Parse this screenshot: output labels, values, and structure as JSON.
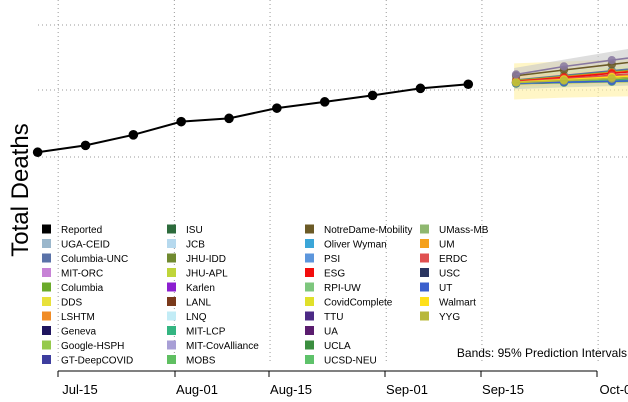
{
  "chart_data": {
    "type": "line",
    "ylabel": "Total Deaths",
    "x_ticks": [
      "Jul-15",
      "Aug-01",
      "Aug-15",
      "Sep-01",
      "Sep-15",
      "Oct-01"
    ],
    "bands_note": "Bands: 95% Prediction Intervals",
    "grid": true,
    "reported": {
      "name": "Reported",
      "color": "#000000",
      "points": [
        [
          "2020-07-11",
          134500
        ],
        [
          "2020-07-18",
          138200
        ],
        [
          "2020-07-25",
          143900
        ],
        [
          "2020-08-01",
          151000
        ],
        [
          "2020-08-08",
          152800
        ],
        [
          "2020-08-15",
          158300
        ],
        [
          "2020-08-22",
          161700
        ],
        [
          "2020-08-29",
          165200
        ],
        [
          "2020-09-05",
          169000
        ],
        [
          "2020-09-12",
          171200
        ]
      ]
    },
    "forecast_dates": [
      "2020-09-19",
      "2020-09-26",
      "2020-10-03",
      "2020-10-10"
    ],
    "forecasts": [
      {
        "name": "UGA-CEID",
        "color": "#9BB7CC",
        "values": [
          171800,
          172300,
          172800,
          173300
        ]
      },
      {
        "name": "Columbia-UNC",
        "color": "#5A72A8",
        "values": [
          173500,
          176000,
          178500,
          181000
        ]
      },
      {
        "name": "MIT-ORC",
        "color": "#C782D6",
        "values": [
          172400,
          174200,
          176000,
          177800
        ]
      },
      {
        "name": "Columbia",
        "color": "#6AAA2A",
        "values": [
          173300,
          175500,
          177800,
          180200
        ]
      },
      {
        "name": "DDS",
        "color": "#E8E13A",
        "values": [
          172000,
          173500,
          175000,
          176500
        ]
      },
      {
        "name": "LSHTM",
        "color": "#F08C26",
        "values": [
          173000,
          175200,
          177500,
          179800
        ]
      },
      {
        "name": "Geneva",
        "color": "#1E145E",
        "values": [
          172100,
          173400,
          174700,
          176000
        ]
      },
      {
        "name": "Google-HSPH",
        "color": "#95CA4C",
        "values": [
          171500,
          172000,
          172500,
          173000
        ]
      },
      {
        "name": "GT-DeepCOVID",
        "color": "#3D3D9E",
        "values": [
          172500,
          174000,
          175600,
          177200
        ]
      },
      {
        "name": "ISU",
        "color": "#2D6B3C",
        "values": [
          171600,
          172200,
          172900,
          173600
        ]
      },
      {
        "name": "JCB",
        "color": "#B6D9EE",
        "values": [
          172000,
          173200,
          174500,
          175800
        ]
      },
      {
        "name": "JHU-IDD",
        "color": "#708A30",
        "values": [
          172300,
          173700,
          175100,
          176500
        ]
      },
      {
        "name": "JHU-APL",
        "color": "#BFD53A",
        "values": [
          171900,
          172800,
          173700,
          174600
        ]
      },
      {
        "name": "Karlen",
        "color": "#8C1FD0",
        "values": [
          172200,
          173400,
          174600,
          175800
        ]
      },
      {
        "name": "LANL",
        "color": "#7A3A1C",
        "values": [
          172600,
          174300,
          176000,
          177700
        ]
      },
      {
        "name": "LNQ",
        "color": "#C2ECF6",
        "values": [
          171700,
          172300,
          172900,
          173500
        ]
      },
      {
        "name": "MIT-LCP",
        "color": "#34B581",
        "values": [
          171800,
          172300,
          172800,
          173300
        ]
      },
      {
        "name": "MIT-CovAlliance",
        "color": "#A89FD6",
        "values": [
          172500,
          174000,
          175500,
          177000
        ]
      },
      {
        "name": "MOBS",
        "color": "#5FBF61",
        "values": [
          172000,
          173000,
          174000,
          175000
        ]
      },
      {
        "name": "NotreDame-Mobility",
        "color": "#6B5A26",
        "values": [
          175800,
          178900,
          181900,
          185000
        ]
      },
      {
        "name": "Oliver Wyman",
        "color": "#3BA6D8",
        "values": [
          171900,
          172500,
          173100,
          173700
        ]
      },
      {
        "name": "PSI",
        "color": "#5C96DC",
        "values": [
          172000,
          172700,
          173400,
          174100
        ]
      },
      {
        "name": "ESG",
        "color": "#F20D0D",
        "values": [
          172800,
          174900,
          177100,
          179300
        ]
      },
      {
        "name": "RPI-UW",
        "color": "#7DC67D",
        "values": [
          171800,
          172400,
          173000,
          173600
        ]
      },
      {
        "name": "CovidComplete",
        "color": "#E0E02A",
        "values": [
          172400,
          173800,
          175200,
          176600
        ]
      },
      {
        "name": "TTU",
        "color": "#4C2A86",
        "values": [
          171900,
          172600,
          173300,
          174000
        ]
      },
      {
        "name": "UA",
        "color": "#5A1C6E",
        "values": [
          172100,
          173000,
          173900,
          174800
        ]
      },
      {
        "name": "UCLA",
        "color": "#3B8E3F",
        "values": [
          172000,
          173000,
          174000,
          175000
        ]
      },
      {
        "name": "UCSD-NEU",
        "color": "#5EC26A",
        "values": [
          171900,
          172600,
          173300,
          174000
        ]
      },
      {
        "name": "UMass-MB",
        "color": "#8FB870",
        "values": [
          172300,
          173500,
          174800,
          176100
        ]
      },
      {
        "name": "UM",
        "color": "#F5A11C",
        "values": [
          172400,
          173800,
          175300,
          176800
        ]
      },
      {
        "name": "ERDC",
        "color": "#E05050",
        "values": [
          172600,
          174200,
          175900,
          177600
        ]
      },
      {
        "name": "USC",
        "color": "#2A3560",
        "values": [
          172200,
          173300,
          174400,
          175500
        ]
      },
      {
        "name": "UT",
        "color": "#3A5FCD",
        "values": [
          171800,
          172300,
          172800,
          173300
        ]
      },
      {
        "name": "Walmart",
        "color": "#FFE01A",
        "values": [
          172300,
          173700,
          175100,
          176500
        ]
      },
      {
        "name": "YYG",
        "color": "#B8B83A",
        "values": [
          172100,
          173200,
          174300,
          175400
        ]
      }
    ],
    "extra_trajectory": {
      "color": "#8878A0",
      "values": [
        176500,
        180800,
        184200,
        187600
      ]
    },
    "bands": [
      {
        "color": "#FFF0A0",
        "lower": [
          163000,
          164000,
          164500,
          165000
        ],
        "upper": [
          182500,
          183500,
          184500,
          185500
        ]
      },
      {
        "color": "#C8C8C8",
        "lower": [
          168500,
          169500,
          170200,
          171000
        ],
        "upper": [
          180000,
          184500,
          188800,
          193500
        ]
      },
      {
        "color": "#D8E4A8",
        "lower": [
          169000,
          169800,
          170500,
          171200
        ],
        "upper": [
          176500,
          178500,
          180500,
          182500
        ]
      },
      {
        "color": "#F2D0A0",
        "lower": [
          170000,
          170800,
          171500,
          172200
        ],
        "upper": [
          175500,
          177300,
          179200,
          181000
        ]
      }
    ]
  }
}
